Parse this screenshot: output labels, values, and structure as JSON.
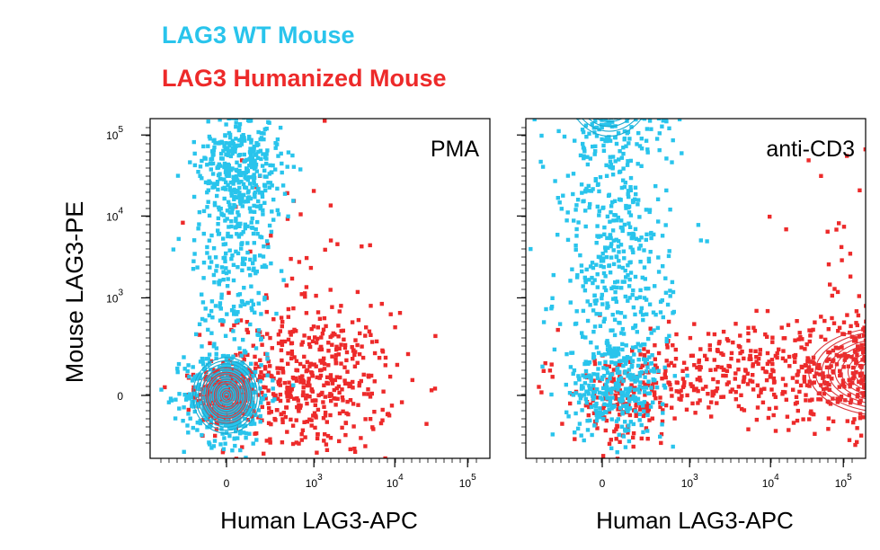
{
  "chart_data": {
    "type": "scatter",
    "legend": [
      {
        "name": "LAG3 WT Mouse",
        "color": "#29c4ec"
      },
      {
        "name": "LAG3 Humanized Mouse",
        "color": "#ed2a2a"
      }
    ],
    "ylabel": "Mouse LAG3-PE",
    "y_ticks": [
      {
        "label": "0",
        "power": ""
      },
      {
        "label": "10",
        "power": "3"
      },
      {
        "label": "10",
        "power": "4"
      },
      {
        "label": "10",
        "power": "5"
      }
    ],
    "x_ticks": [
      {
        "label": "0",
        "power": ""
      },
      {
        "label": "10",
        "power": "3"
      },
      {
        "label": "10",
        "power": "4"
      },
      {
        "label": "10",
        "power": "5"
      }
    ],
    "panels": [
      {
        "title": "PMA",
        "xlabel": "Human LAG3-APC",
        "series": [
          {
            "name": "LAG3 Humanized Mouse",
            "clusters": [
              {
                "x": 0.0,
                "y": 0.0,
                "sx": 0.22,
                "sy": 0.22,
                "n": 320
              },
              {
                "x": 1.2,
                "y": 0.15,
                "sx": 0.6,
                "sy": 0.45,
                "n": 460
              },
              {
                "x": 0.9,
                "y": 1.2,
                "sx": 0.6,
                "sy": 1.0,
                "n": 55
              }
            ]
          },
          {
            "name": "LAG3 WT Mouse",
            "clusters": [
              {
                "x": 0.0,
                "y": 0.0,
                "sx": 0.3,
                "sy": 0.3,
                "n": 430
              },
              {
                "x": 0.2,
                "y": 2.9,
                "sx": 0.3,
                "sy": 0.5,
                "n": 480
              },
              {
                "x": 0.1,
                "y": 1.4,
                "sx": 0.28,
                "sy": 0.6,
                "n": 160
              }
            ]
          }
        ]
      },
      {
        "title": "anti-CD3",
        "xlabel": "Human LAG3-APC",
        "series": [
          {
            "name": "LAG3 Humanized Mouse",
            "clusters": [
              {
                "x": 4.1,
                "y": 0.3,
                "sx": 0.7,
                "sy": 0.35,
                "n": 520
              },
              {
                "x": 2.0,
                "y": 0.3,
                "sx": 1.3,
                "sy": 0.3,
                "n": 360
              },
              {
                "x": 0.3,
                "y": -0.1,
                "sx": 0.35,
                "sy": 0.25,
                "n": 150
              },
              {
                "x": 4.0,
                "y": 1.5,
                "sx": 0.6,
                "sy": 0.8,
                "n": 90
              }
            ]
          },
          {
            "name": "LAG3 WT Mouse",
            "clusters": [
              {
                "x": 0.1,
                "y": 4.0,
                "sx": 0.4,
                "sy": 0.45,
                "n": 560
              },
              {
                "x": 0.2,
                "y": 1.6,
                "sx": 0.4,
                "sy": 1.0,
                "n": 470
              },
              {
                "x": 0.2,
                "y": 0.1,
                "sx": 0.35,
                "sy": 0.3,
                "n": 260
              }
            ]
          }
        ]
      }
    ]
  }
}
